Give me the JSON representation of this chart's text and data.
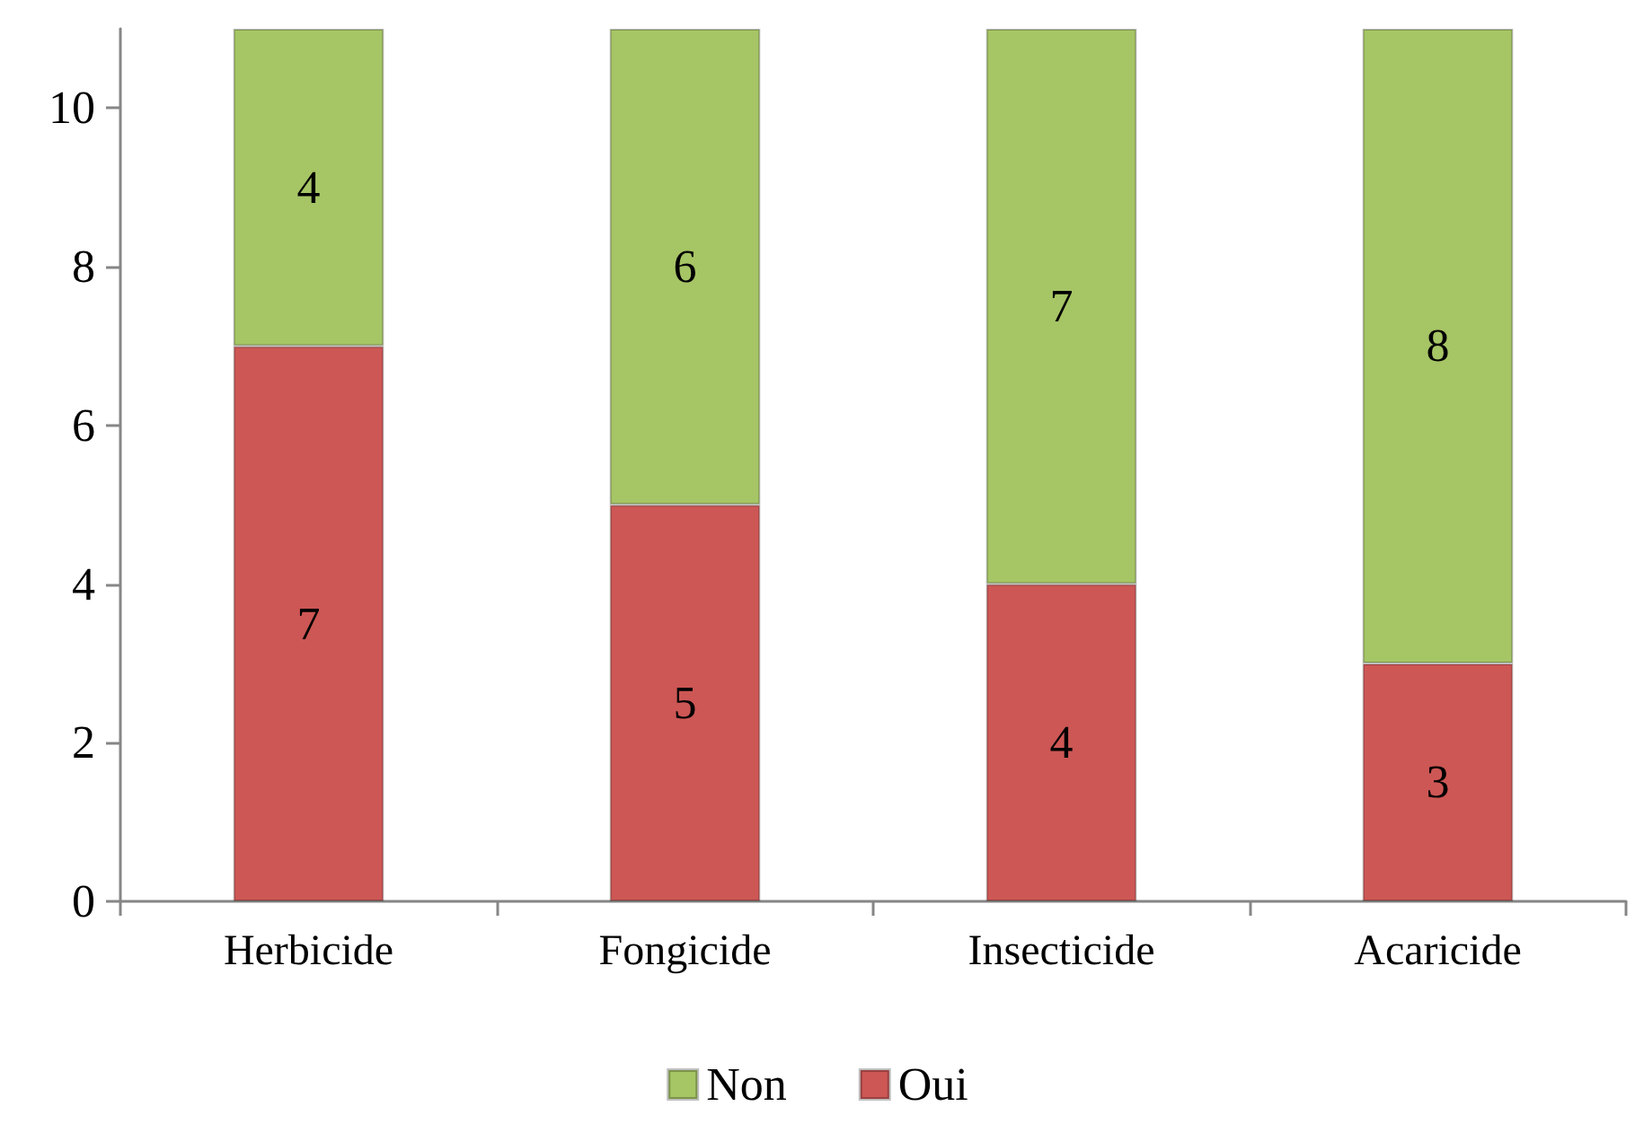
{
  "chart_data": {
    "type": "bar",
    "categories": [
      "Herbicide",
      "Fongicide",
      "Insecticide",
      "Acaricide"
    ],
    "series": [
      {
        "name": "Oui",
        "color": "#cd5755",
        "values": [
          7,
          5,
          4,
          3
        ]
      },
      {
        "name": "Non",
        "color": "#a6c565",
        "values": [
          4,
          6,
          7,
          8
        ]
      }
    ],
    "stacked": true,
    "ylim": [
      0,
      11
    ],
    "yticks": [
      0,
      2,
      4,
      6,
      8,
      10
    ],
    "data_labels": true,
    "legend": "bottom"
  }
}
